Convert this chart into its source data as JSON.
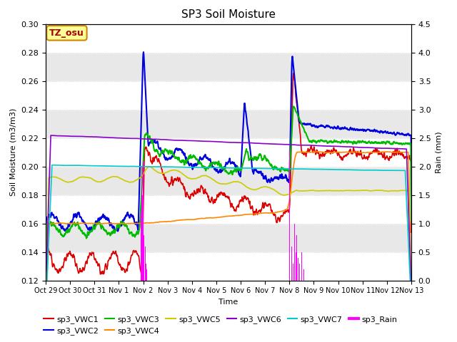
{
  "title": "SP3 Soil Moisture",
  "xlabel": "Time",
  "ylabel_left": "Soil Moisture (m3/m3)",
  "ylabel_right": "Rain (mm)",
  "ylim_left": [
    0.12,
    0.3
  ],
  "ylim_right": [
    0.0,
    4.5
  ],
  "yticks_left": [
    0.12,
    0.14,
    0.16,
    0.18,
    0.2,
    0.22,
    0.24,
    0.26,
    0.28,
    0.3
  ],
  "yticks_right": [
    0.0,
    0.5,
    1.0,
    1.5,
    2.0,
    2.5,
    3.0,
    3.5,
    4.0,
    4.5
  ],
  "xtick_labels": [
    "Oct 29",
    "Oct 30",
    "Oct 31",
    "Nov 1",
    "Nov 2",
    "Nov 3",
    "Nov 4",
    "Nov 5",
    "Nov 6",
    "Nov 7",
    "Nov 8",
    "Nov 9",
    "Nov 10",
    "Nov 11",
    "Nov 12",
    "Nov 13"
  ],
  "xtick_positions": [
    0,
    1,
    2,
    3,
    4,
    5,
    6,
    7,
    8,
    9,
    10,
    11,
    12,
    13,
    14,
    15
  ],
  "bg_color": "#e8e8e8",
  "legend_box_text": "TZ_osu",
  "series": {
    "sp3_VWC1": {
      "color": "#dd0000",
      "lw": 1.2
    },
    "sp3_VWC2": {
      "color": "#0000dd",
      "lw": 1.5
    },
    "sp3_VWC3": {
      "color": "#00bb00",
      "lw": 1.5
    },
    "sp3_VWC4": {
      "color": "#ff8800",
      "lw": 1.2
    },
    "sp3_VWC5": {
      "color": "#cccc00",
      "lw": 1.2
    },
    "sp3_VWC6": {
      "color": "#8800cc",
      "lw": 1.2
    },
    "sp3_VWC7": {
      "color": "#00cccc",
      "lw": 1.2
    },
    "sp3_Rain": {
      "color": "#ff00ff",
      "lw": 1.0
    }
  }
}
